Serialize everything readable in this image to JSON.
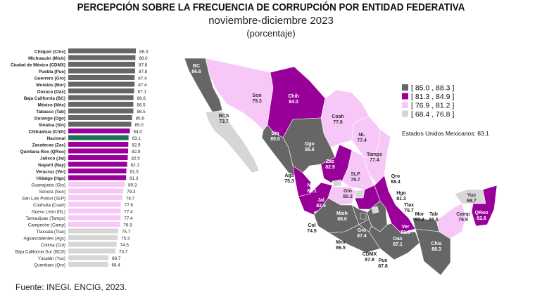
{
  "title": "PERCEPCIÓN SOBRE LA FRECUENCIA DE CORRUPCIÓN POR ENTIDAD FEDERATIVA",
  "subtitle": "noviembre-diciembre 2023",
  "unit": "(porcentaje)",
  "source": "Fuente: INEGI. ENCIG, 2023.",
  "colors": {
    "c1": "#666666",
    "c2": "#990099",
    "c3": "#f7c8f7",
    "c4": "#d6d6d6",
    "national": "#1e6e5c"
  },
  "chart_data": [
    {
      "type": "bar",
      "orientation": "horizontal",
      "xlim": [
        40,
        88.3
      ],
      "categories": [
        "Chiapas (Chis)",
        "Michoacán (Mich)",
        "Ciudad de México (CDMX)",
        "Puebla (Pue)",
        "Guerrero (Gro)",
        "Morelos (Mor)",
        "Oaxaca (Oax)",
        "Baja California (BC)",
        "México (Méx)",
        "Tabasco (Tab)",
        "Durango (Dgo)",
        "Sinaloa (Sin)",
        "Chihuahua (Chih)",
        "Nacional",
        "Zacatecas (Zac)",
        "Quintana Roo (QRoo)",
        "Jalisco (Jal)",
        "Nayarit (Nay)",
        "Veracruz (Ver)",
        "Hidalgo (Hgo)",
        "Guanajuato (Gto)",
        "Sonora (Son)",
        "San Luis Potosí (SLP)",
        "Coahuila (Coah)",
        "Nuevo León (NL)",
        "Tamaulipas (Tamps)",
        "Campeche (Camp)",
        "Tlaxcala (Tlax)",
        "Aguascalientes (Ags)",
        "Colima (Col)",
        "Baja California Sur (BCS)",
        "Yucatán (Yuc)",
        "Querétaro (Qro)"
      ],
      "values": [
        88.3,
        88.0,
        87.8,
        87.8,
        87.4,
        87.4,
        87.1,
        86.6,
        86.5,
        86.5,
        85.6,
        85.0,
        84.0,
        83.1,
        82.9,
        82.8,
        82.5,
        82.1,
        81.5,
        81.3,
        80.3,
        79.3,
        78.7,
        77.6,
        77.4,
        77.4,
        76.9,
        75.7,
        75.3,
        74.5,
        73.7,
        68.7,
        68.4
      ],
      "value_labels": [
        "88.3",
        "88.0",
        "87.8",
        "87.8",
        "87.4",
        "87.4",
        "87.1",
        "86.6",
        "86.5",
        "86.5",
        "85.6",
        "85.0",
        "84.0",
        "83.1",
        "82.9",
        "82.8",
        "82.5",
        "82.1",
        "81.5",
        "81.3",
        "80.3",
        "79.3",
        "78.7",
        "77.6",
        "77.4",
        "77.4",
        "76.9",
        "75.7",
        "75.3",
        "74.5",
        "73.7",
        "68.7",
        "68.4"
      ]
    },
    {
      "type": "choropleth",
      "legend": {
        "placement": "right",
        "items": [
          "[ 85.0 , 88.3 ]",
          "[ 81.3 , 84.9 ]",
          "[ 76.9 , 81.2 ]",
          "[ 68.4 , 76.8 ]"
        ],
        "ranges": [
          [
            85.0,
            88.3
          ],
          [
            81.3,
            84.9
          ],
          [
            76.9,
            81.2
          ],
          [
            68.4,
            76.8
          ]
        ]
      },
      "national_label": "Estados Unidos Mexicanos:  83.1",
      "states": [
        {
          "id": "BC",
          "label": "BC",
          "value": "86.6"
        },
        {
          "id": "BCS",
          "label": "BCS",
          "value": "73.7"
        },
        {
          "id": "Son",
          "label": "Son",
          "value": "79.3"
        },
        {
          "id": "Chih",
          "label": "Chih",
          "value": "84.0"
        },
        {
          "id": "Coah",
          "label": "Coah",
          "value": "77.6"
        },
        {
          "id": "NL",
          "label": "NL",
          "value": "77.4"
        },
        {
          "id": "Tamps",
          "label": "Tamps",
          "value": "77.4"
        },
        {
          "id": "Sin",
          "label": "Sin",
          "value": "85.0"
        },
        {
          "id": "Dgo",
          "label": "Dgo",
          "value": "85.6"
        },
        {
          "id": "Zac",
          "label": "Zac",
          "value": "82.9"
        },
        {
          "id": "Nay",
          "label": "Nay",
          "value": "82.1"
        },
        {
          "id": "Jal",
          "label": "Jal",
          "value": "82.5"
        },
        {
          "id": "Ags",
          "label": "Ags",
          "value": "75.3"
        },
        {
          "id": "Col",
          "label": "Col",
          "value": "74.5"
        },
        {
          "id": "SLP",
          "label": "SLP",
          "value": "78.7"
        },
        {
          "id": "Gto",
          "label": "Gto",
          "value": "80.3"
        },
        {
          "id": "Qro",
          "label": "Qro",
          "value": "68.4"
        },
        {
          "id": "Hgo",
          "label": "Hgo",
          "value": "81.3"
        },
        {
          "id": "Mich",
          "label": "Mich",
          "value": "88.0"
        },
        {
          "id": "Mex",
          "label": "Mex",
          "value": "86.5"
        },
        {
          "id": "Gro",
          "label": "Gro",
          "value": "87.4"
        },
        {
          "id": "CDMX",
          "label": "CDMX",
          "value": "87.8"
        },
        {
          "id": "Pue",
          "label": "Pue",
          "value": "87.8"
        },
        {
          "id": "Tlax",
          "label": "Tlax",
          "value": "75.7"
        },
        {
          "id": "Mor",
          "label": "Mor",
          "value": "87.4"
        },
        {
          "id": "Ver",
          "label": "Ver",
          "value": "81.5"
        },
        {
          "id": "Oax",
          "label": "Oax",
          "value": "87.1"
        },
        {
          "id": "Tab",
          "label": "Tab",
          "value": "86.5"
        },
        {
          "id": "Chis",
          "label": "Chis",
          "value": "88.3"
        },
        {
          "id": "Camp",
          "label": "Camp",
          "value": "76.9"
        },
        {
          "id": "Yuc",
          "label": "Yuc",
          "value": "68.7"
        },
        {
          "id": "QRoo",
          "label": "QRoo",
          "value": "82.8"
        }
      ]
    }
  ]
}
